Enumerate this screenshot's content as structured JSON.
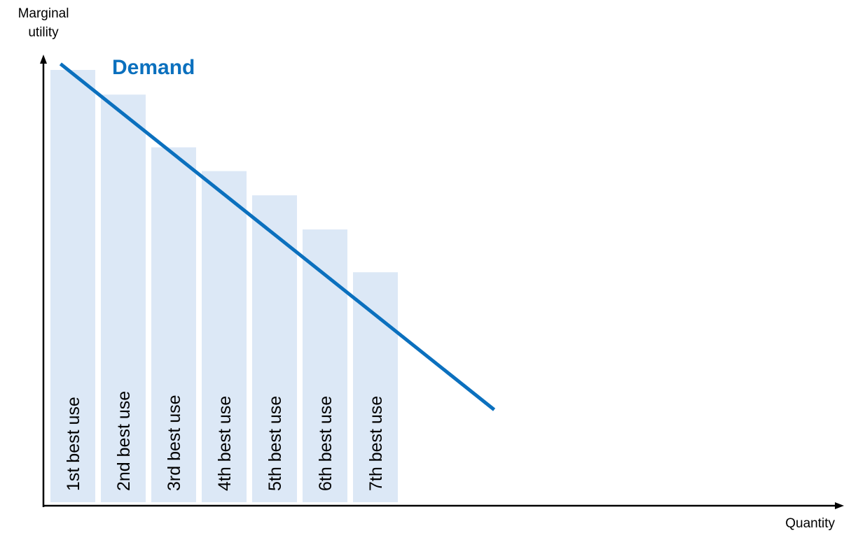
{
  "chart_data": {
    "type": "bar",
    "ylabel_lines": [
      "Marginal",
      "utility"
    ],
    "xlabel": "Quantity",
    "categories": [
      "1st best use",
      "2nd best use",
      "3rd best use",
      "4th best use",
      "5th best use",
      "6th best use",
      "7th best use"
    ],
    "values": [
      100,
      94.3,
      82.1,
      76.6,
      71.0,
      63.1,
      53.2
    ],
    "ylim": [
      0,
      100
    ],
    "grid": false,
    "bar_color": "#dce8f6",
    "demand_line": {
      "label": "Demand",
      "color": "#0b70be",
      "start": {
        "x": 0.2,
        "y": 101.4
      },
      "end": {
        "x": 8.8,
        "y": 21.4
      }
    }
  }
}
